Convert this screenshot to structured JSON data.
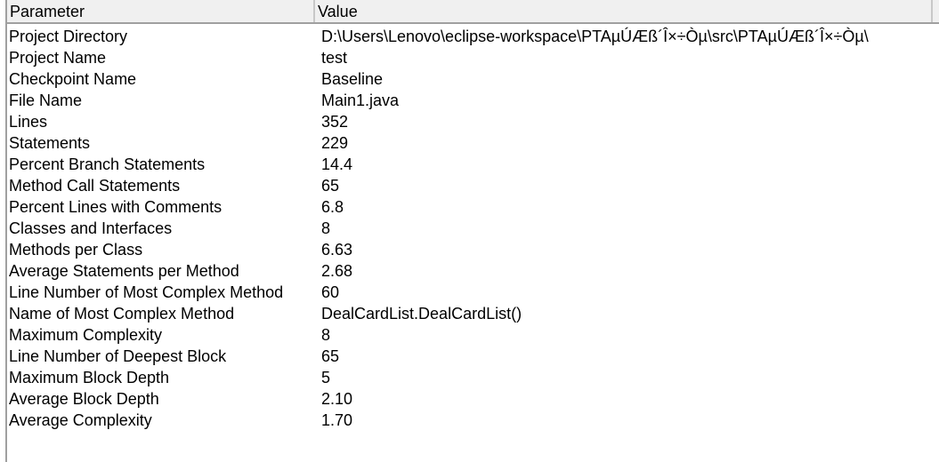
{
  "header": {
    "parameter": "Parameter",
    "value": "Value"
  },
  "rows": [
    {
      "p": "Project Directory",
      "v": "D:\\Users\\Lenovo\\eclipse-workspace\\PTAµÚÆß´Î×÷Òµ\\src\\PTAµÚÆß´Î×÷Òµ\\"
    },
    {
      "p": "Project Name",
      "v": "test"
    },
    {
      "p": "Checkpoint Name",
      "v": "Baseline"
    },
    {
      "p": "File Name",
      "v": "Main1.java"
    },
    {
      "p": "Lines",
      "v": "352"
    },
    {
      "p": "Statements",
      "v": "229"
    },
    {
      "p": "Percent Branch Statements",
      "v": "14.4"
    },
    {
      "p": "Method Call Statements",
      "v": "65"
    },
    {
      "p": "Percent Lines with Comments",
      "v": "6.8"
    },
    {
      "p": "Classes and Interfaces",
      "v": "8"
    },
    {
      "p": "Methods per Class",
      "v": "6.63"
    },
    {
      "p": "Average Statements per Method",
      "v": "2.68"
    },
    {
      "p": "Line Number of Most Complex Method",
      "v": "60"
    },
    {
      "p": "Name of Most Complex Method",
      "v": "DealCardList.DealCardList()"
    },
    {
      "p": "Maximum Complexity",
      "v": "8"
    },
    {
      "p": "Line Number of Deepest Block",
      "v": "65"
    },
    {
      "p": "Maximum Block Depth",
      "v": "5"
    },
    {
      "p": "Average Block Depth",
      "v": "2.10"
    },
    {
      "p": "Average Complexity",
      "v": "1.70"
    }
  ]
}
